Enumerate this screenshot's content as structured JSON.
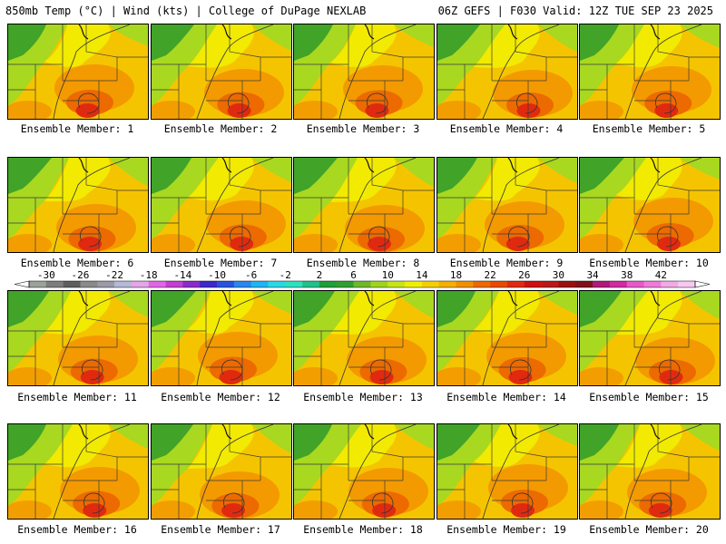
{
  "header": {
    "left": "850mb Temp (°C) | Wind (kts) | College of DuPage NEXLAB",
    "right": "06Z GEFS | F030 Valid: 12Z TUE SEP 23 2025"
  },
  "members": [
    {
      "label": "Ensemble Member: 1"
    },
    {
      "label": "Ensemble Member: 2"
    },
    {
      "label": "Ensemble Member: 3"
    },
    {
      "label": "Ensemble Member: 4"
    },
    {
      "label": "Ensemble Member: 5"
    },
    {
      "label": "Ensemble Member: 6"
    },
    {
      "label": "Ensemble Member: 7"
    },
    {
      "label": "Ensemble Member: 8"
    },
    {
      "label": "Ensemble Member: 9"
    },
    {
      "label": "Ensemble Member: 10"
    },
    {
      "label": "Ensemble Member: 11"
    },
    {
      "label": "Ensemble Member: 12"
    },
    {
      "label": "Ensemble Member: 13"
    },
    {
      "label": "Ensemble Member: 14"
    },
    {
      "label": "Ensemble Member: 15"
    },
    {
      "label": "Ensemble Member: 16"
    },
    {
      "label": "Ensemble Member: 17"
    },
    {
      "label": "Ensemble Member: 18"
    },
    {
      "label": "Ensemble Member: 19"
    },
    {
      "label": "Ensemble Member: 20"
    }
  ],
  "colorbar": {
    "units": "°C",
    "tick_labels": [
      "-30",
      "-26",
      "-22",
      "-18",
      "-14",
      "-10",
      "-6",
      "-2",
      "2",
      "6",
      "10",
      "14",
      "18",
      "22",
      "26",
      "30",
      "34",
      "38",
      "42"
    ],
    "colors": [
      "#9aa29a",
      "#7d7d7d",
      "#5e5e5e",
      "#8a8a8a",
      "#9a9aa8",
      "#b5b8d6",
      "#e3a6e8",
      "#e066e6",
      "#c23fd0",
      "#8a2bcc",
      "#3d28c9",
      "#2a52e0",
      "#2a86f0",
      "#1fb4f2",
      "#2ad7e6",
      "#2de0c0",
      "#22c08a",
      "#1f9e3a",
      "#2fa030",
      "#6fb82a",
      "#9fd41e",
      "#c8e418",
      "#f0ef00",
      "#f5d000",
      "#f5b000",
      "#f29000",
      "#ec6a00",
      "#e84a00",
      "#e02a10",
      "#cf1010",
      "#b81818",
      "#9a1010",
      "#80101a",
      "#b0187a",
      "#d22aa0",
      "#e858c8",
      "#f07ad8",
      "#f4a8e6",
      "#f8c8f0"
    ],
    "colors_start_value": -32,
    "colors_step": 2
  },
  "colors": {
    "lake_green": "#2f9a2a",
    "light_green": "#a8d820",
    "yellow": "#f2ea00",
    "gold": "#f5c400",
    "orange": "#f39a00",
    "deep_orange": "#ec6a00",
    "red": "#e02a10"
  }
}
